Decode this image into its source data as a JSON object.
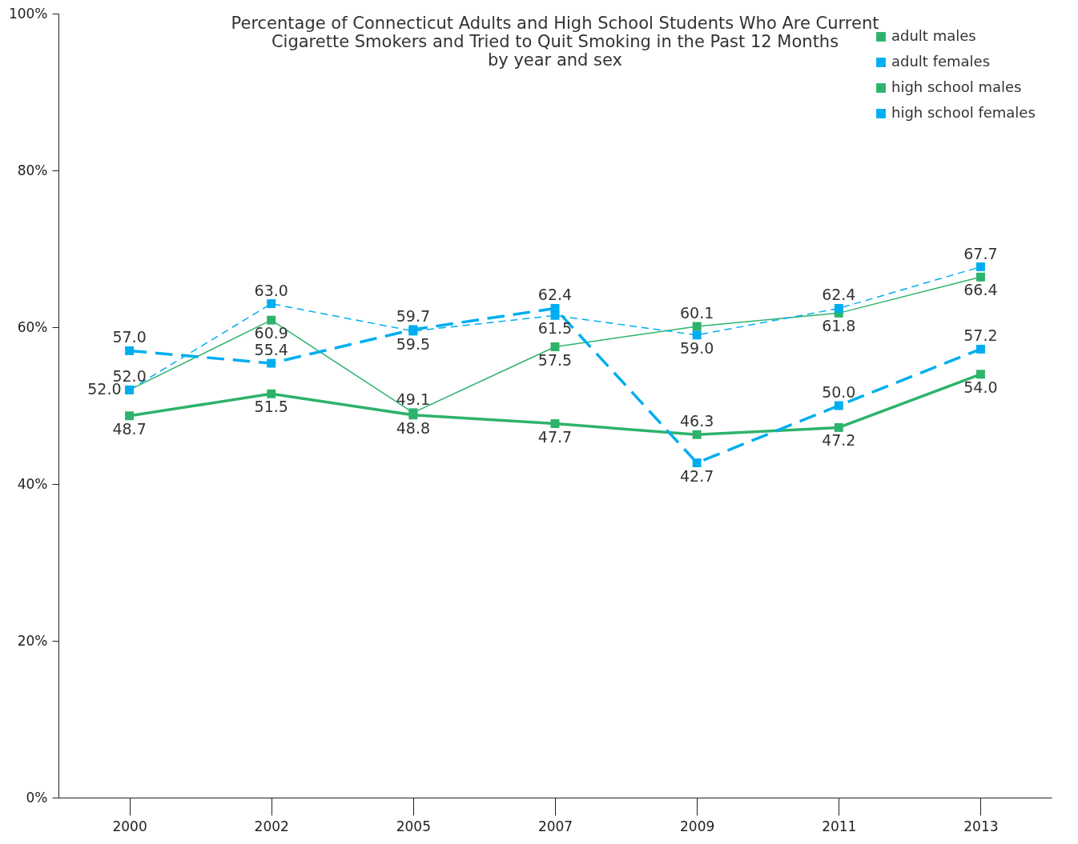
{
  "chart_data": {
    "type": "line",
    "title": [
      "Percentage of Connecticut Adults and High School Students Who Are Current",
      "Cigarette Smokers and Tried to Quit Smoking in the Past 12 Months",
      "by year and sex"
    ],
    "categories": [
      "2000",
      "2002",
      "2005",
      "2007",
      "2009",
      "2011",
      "2013"
    ],
    "series": [
      {
        "name": "adult males",
        "color": "#2db36b",
        "line_style": "solid",
        "values": [
          52.0,
          60.9,
          49.1,
          57.5,
          60.1,
          61.8,
          66.4
        ],
        "value_labels": [
          "52.0",
          "60.9",
          "49.1",
          "57.5",
          "60.1",
          "61.8",
          "66.4"
        ]
      },
      {
        "name": "adult females",
        "color": "#00aeef",
        "line_style": "dashed",
        "values": [
          52.0,
          63.0,
          59.5,
          61.5,
          59.0,
          62.4,
          67.7
        ],
        "value_labels": [
          "52.0",
          "63.0",
          "59.5",
          "61.5",
          "59.0",
          "62.4",
          "67.7"
        ]
      },
      {
        "name": "high school males",
        "color": "#2db36b",
        "line_style": "solid",
        "values": [
          48.7,
          51.5,
          48.8,
          47.7,
          46.3,
          47.2,
          54.0
        ],
        "value_labels": [
          "48.7",
          "51.5",
          "48.8",
          "47.7",
          "46.3",
          "47.2",
          "54.0"
        ]
      },
      {
        "name": "high school females",
        "color": "#00aeef",
        "line_style": "dashed",
        "values": [
          57.0,
          55.4,
          59.7,
          62.4,
          42.7,
          50.0,
          57.2
        ],
        "value_labels": [
          "57.0",
          "55.4",
          "59.7",
          "62.4",
          "42.7",
          "50.0",
          "57.2"
        ]
      }
    ],
    "ylim": [
      0,
      100
    ],
    "yticks": [
      {
        "value": 0,
        "label": "0%"
      },
      {
        "value": 20,
        "label": "20%"
      },
      {
        "value": 40,
        "label": "40%"
      },
      {
        "value": 60,
        "label": "60%"
      },
      {
        "value": 80,
        "label": "80%"
      },
      {
        "value": 100,
        "label": "100%"
      }
    ],
    "grid": false,
    "legend": "top right",
    "marker": "square"
  }
}
